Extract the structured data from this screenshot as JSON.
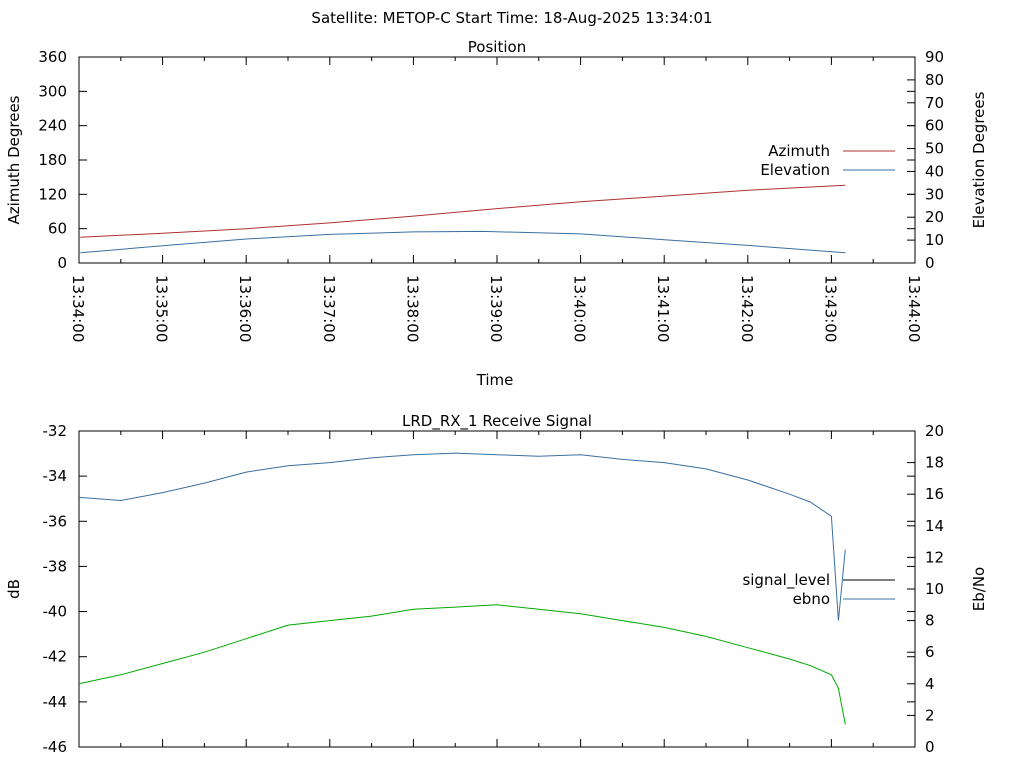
{
  "page_title": "Satellite: METOP-C    Start Time: 18-Aug-2025 13:34:01",
  "chart_data": [
    {
      "type": "line",
      "title": "Position",
      "xlabel": "Time",
      "ylabel_left": "Azimuth Degrees",
      "ylabel_right": "Elevation Degrees",
      "x_range": [
        "13:34:00",
        "13:44:00"
      ],
      "x_ticks": [
        "13:34:00",
        "13:35:00",
        "13:36:00",
        "13:37:00",
        "13:38:00",
        "13:39:00",
        "13:40:00",
        "13:41:00",
        "13:42:00",
        "13:43:00",
        "13:44:00"
      ],
      "yleft_lim": [
        0,
        360
      ],
      "yleft_ticks": [
        "0",
        "60",
        "120",
        "180",
        "240",
        "300",
        "360"
      ],
      "yright_lim": [
        0,
        90
      ],
      "yright_ticks": [
        "0",
        "10",
        "20",
        "30",
        "40",
        "50",
        "60",
        "70",
        "80",
        "90"
      ],
      "grid": false,
      "legend_position": "right",
      "series": [
        {
          "name": "Azimuth",
          "axis": "left",
          "color": "#b03030",
          "x": [
            "13:34:01",
            "13:35:00",
            "13:36:00",
            "13:37:00",
            "13:38:00",
            "13:39:00",
            "13:40:00",
            "13:41:00",
            "13:42:00",
            "13:43:10"
          ],
          "values": [
            45,
            52,
            60,
            70,
            82,
            95,
            107,
            117,
            127,
            136
          ]
        },
        {
          "name": "Elevation",
          "axis": "right",
          "color": "#3a6fa0",
          "x": [
            "13:34:01",
            "13:35:00",
            "13:36:00",
            "13:37:00",
            "13:38:00",
            "13:38:50",
            "13:40:00",
            "13:41:00",
            "13:42:00",
            "13:43:10"
          ],
          "values": [
            4.5,
            7.5,
            10.5,
            12.5,
            13.6,
            13.8,
            12.7,
            10.2,
            7.7,
            4.5
          ]
        }
      ]
    },
    {
      "type": "line",
      "title": "LRD_RX_1 Receive Signal",
      "xlabel": "",
      "ylabel_left": "dB",
      "ylabel_right": "Eb/No",
      "x_range": [
        "13:34:00",
        "13:44:00"
      ],
      "yleft_lim": [
        -46,
        -32
      ],
      "yleft_ticks": [
        "-32",
        "-34",
        "-36",
        "-38",
        "-40",
        "-42",
        "-44",
        "-46"
      ],
      "yright_lim": [
        0,
        20
      ],
      "yright_ticks": [
        "0",
        "2",
        "4",
        "6",
        "8",
        "10",
        "12",
        "14",
        "16",
        "18",
        "20"
      ],
      "grid": false,
      "legend_position": "right",
      "series": [
        {
          "name": "signal_level",
          "axis": "left",
          "color": "#000000",
          "x": [],
          "values": []
        },
        {
          "name": "ebno",
          "axis": "right",
          "color": "#3a6fa0",
          "x": [
            "13:34:00",
            "13:34:30",
            "13:35:00",
            "13:35:30",
            "13:36:00",
            "13:36:30",
            "13:37:00",
            "13:37:30",
            "13:38:00",
            "13:38:30",
            "13:39:00",
            "13:39:30",
            "13:40:00",
            "13:40:30",
            "13:41:00",
            "13:41:30",
            "13:42:00",
            "13:42:30",
            "13:42:45",
            "13:43:00",
            "13:43:05",
            "13:43:10"
          ],
          "values": [
            15.8,
            15.6,
            16.1,
            16.7,
            17.4,
            17.8,
            18.0,
            18.3,
            18.5,
            18.6,
            18.5,
            18.4,
            18.5,
            18.2,
            18.0,
            17.6,
            16.9,
            16.0,
            15.5,
            14.6,
            8.0,
            12.5
          ]
        },
        {
          "name": "",
          "axis": "left",
          "color": "#00aa00",
          "x": [
            "13:34:00",
            "13:34:30",
            "13:35:00",
            "13:35:30",
            "13:36:00",
            "13:36:30",
            "13:37:00",
            "13:37:30",
            "13:38:00",
            "13:38:30",
            "13:39:00",
            "13:39:30",
            "13:40:00",
            "13:40:30",
            "13:41:00",
            "13:41:30",
            "13:42:00",
            "13:42:30",
            "13:42:45",
            "13:43:00",
            "13:43:05",
            "13:43:10"
          ],
          "values": [
            -43.2,
            -42.8,
            -42.3,
            -41.8,
            -41.2,
            -40.6,
            -40.4,
            -40.2,
            -39.9,
            -39.8,
            -39.7,
            -39.9,
            -40.1,
            -40.4,
            -40.7,
            -41.1,
            -41.6,
            -42.1,
            -42.4,
            -42.8,
            -43.4,
            -45.0
          ]
        }
      ]
    }
  ]
}
